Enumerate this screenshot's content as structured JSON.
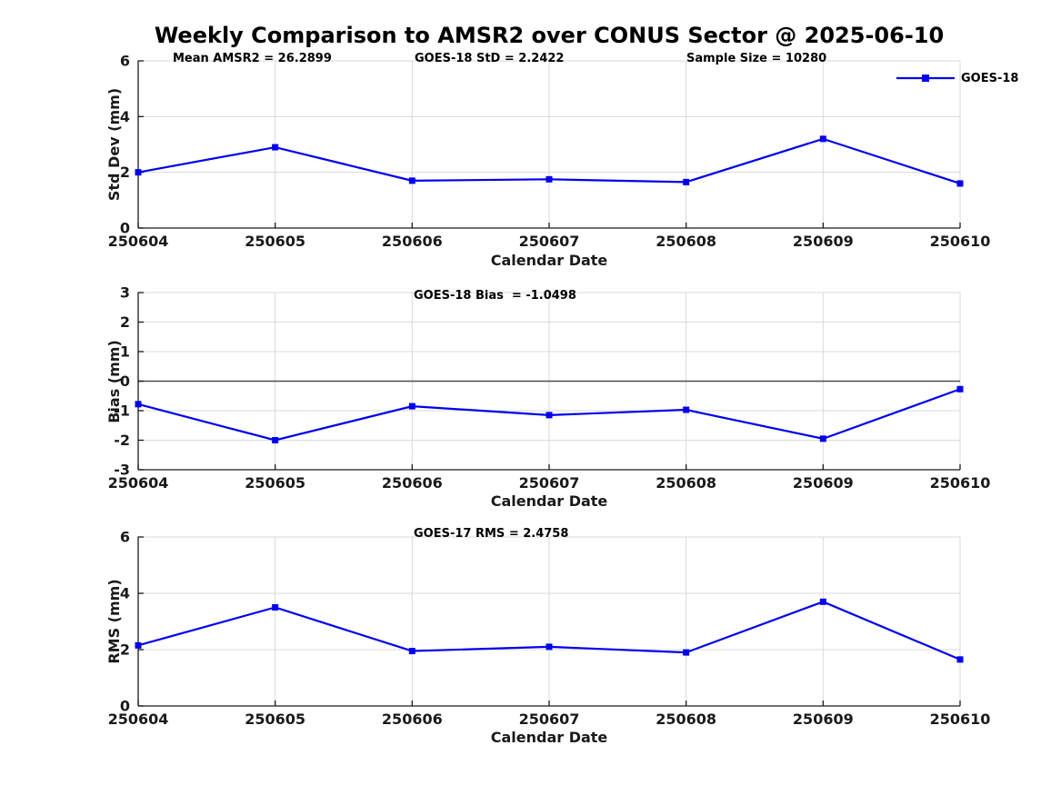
{
  "title": "Weekly Comparison to AMSR2 over CONUS Sector @ 2025-06-10",
  "legend": {
    "label": "GOES-18"
  },
  "colors": {
    "line": "#0000EE",
    "axis": "#1a1a1a",
    "grid": "#d9d9d9",
    "zero_line": "#4d4d4d",
    "text": "#000000"
  },
  "chart_data": [
    {
      "type": "line",
      "name": "std-dev-panel",
      "ylabel": "Std Dev (mm)",
      "xlabel": "Calendar Date",
      "categories": [
        "250604",
        "250605",
        "250606",
        "250607",
        "250608",
        "250609",
        "250610"
      ],
      "series": [
        {
          "name": "GOES-18",
          "values": [
            2.0,
            2.9,
            1.7,
            1.75,
            1.65,
            3.2,
            1.6
          ]
        }
      ],
      "ylim": [
        0,
        6
      ],
      "yticks": [
        0,
        2,
        4,
        6
      ],
      "grid": true,
      "zero_line": false,
      "legend_position": "top-right",
      "annotations": [
        "Mean AMSR2 = 26.2899",
        "GOES-18 StD = 2.2422",
        "Sample Size = 10280"
      ]
    },
    {
      "type": "line",
      "name": "bias-panel",
      "ylabel": "Bias (mm)",
      "xlabel": "Calendar Date",
      "categories": [
        "250604",
        "250605",
        "250606",
        "250607",
        "250608",
        "250609",
        "250610"
      ],
      "series": [
        {
          "name": "GOES-18",
          "values": [
            -0.78,
            -2.0,
            -0.85,
            -1.15,
            -0.97,
            -1.95,
            -0.27
          ]
        }
      ],
      "ylim": [
        -3,
        3
      ],
      "yticks": [
        -3,
        -2,
        -1,
        0,
        1,
        2,
        3
      ],
      "grid": true,
      "zero_line": true,
      "annotations": [
        "GOES-18 Bias  = -1.0498"
      ]
    },
    {
      "type": "line",
      "name": "rms-panel",
      "ylabel": "RMS (mm)",
      "xlabel": "Calendar Date",
      "categories": [
        "250604",
        "250605",
        "250606",
        "250607",
        "250608",
        "250609",
        "250610"
      ],
      "series": [
        {
          "name": "GOES-18",
          "values": [
            2.15,
            3.5,
            1.95,
            2.1,
            1.9,
            3.7,
            1.65
          ]
        }
      ],
      "ylim": [
        0,
        6
      ],
      "yticks": [
        0,
        2,
        4,
        6
      ],
      "grid": true,
      "zero_line": false,
      "annotations": [
        "GOES-17 RMS = 2.4758"
      ]
    }
  ]
}
